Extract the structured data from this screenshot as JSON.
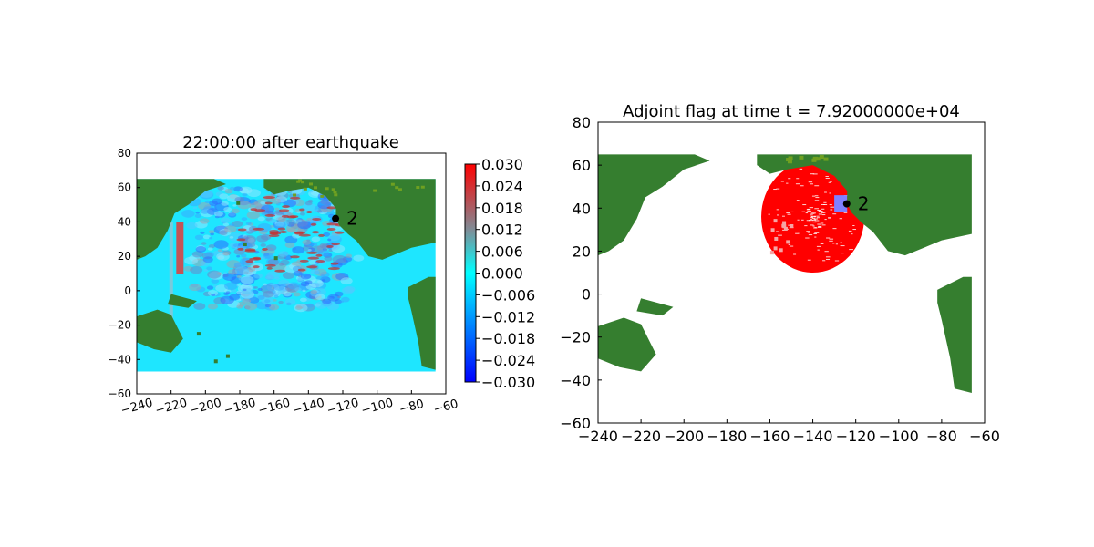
{
  "chart_data": [
    {
      "type": "heatmap",
      "title": "22:00:00 after earthquake",
      "xlim": [
        -240,
        -60
      ],
      "ylim": [
        -60,
        80
      ],
      "xticks": [
        -240,
        -220,
        -200,
        -180,
        -160,
        -140,
        -120,
        -100,
        -80,
        -60
      ],
      "yticks": [
        -60,
        -40,
        -20,
        0,
        20,
        40,
        60,
        80
      ],
      "xtick_labels": [
        "−240",
        "−220",
        "−200",
        "−180",
        "−160",
        "−140",
        "−120",
        "−100",
        "−80",
        "−60"
      ],
      "ytick_labels": [
        "−60",
        "−40",
        "−20",
        "0",
        "20",
        "40",
        "60",
        "80"
      ],
      "colorbar": {
        "range": [
          -0.03,
          0.03
        ],
        "ticks": [
          "0.030",
          "0.024",
          "0.018",
          "0.012",
          "0.006",
          "0.000",
          "−0.006",
          "−0.012",
          "−0.018",
          "−0.024",
          "−0.030"
        ],
        "colors": [
          "#0000ff",
          "#00ffff",
          "#ff0000"
        ]
      },
      "grid": false,
      "domain_extent": {
        "x": [
          -240,
          -66
        ],
        "y": [
          -47,
          65
        ]
      },
      "gauge": {
        "label": "2",
        "x": -124.2,
        "y": 42.0
      }
    },
    {
      "type": "heatmap",
      "title": "Adjoint flag at time t = 7.92000000e+04",
      "xlim": [
        -240,
        -60
      ],
      "ylim": [
        -60,
        80
      ],
      "xticks": [
        -240,
        -220,
        -200,
        -180,
        -160,
        -140,
        -120,
        -100,
        -80,
        -60
      ],
      "yticks": [
        -60,
        -40,
        -20,
        0,
        20,
        40,
        60,
        80
      ],
      "xtick_labels": [
        "−240",
        "−220",
        "−200",
        "−180",
        "−160",
        "−140",
        "−120",
        "−100",
        "−80",
        "−60"
      ],
      "ytick_labels": [
        "−60",
        "−40",
        "−20",
        "0",
        "20",
        "40",
        "60",
        "80"
      ],
      "grid": false,
      "flag_region_center": {
        "x": -140,
        "y": 36
      },
      "gauge": {
        "label": "2",
        "x": -124.2,
        "y": 42.0
      }
    }
  ],
  "colors": {
    "land": "#357e2f",
    "land_light": "#6fa021",
    "flag": "#ff0000",
    "gauge_box": "#8080ff",
    "ocean_base": "#0ff0ff"
  }
}
